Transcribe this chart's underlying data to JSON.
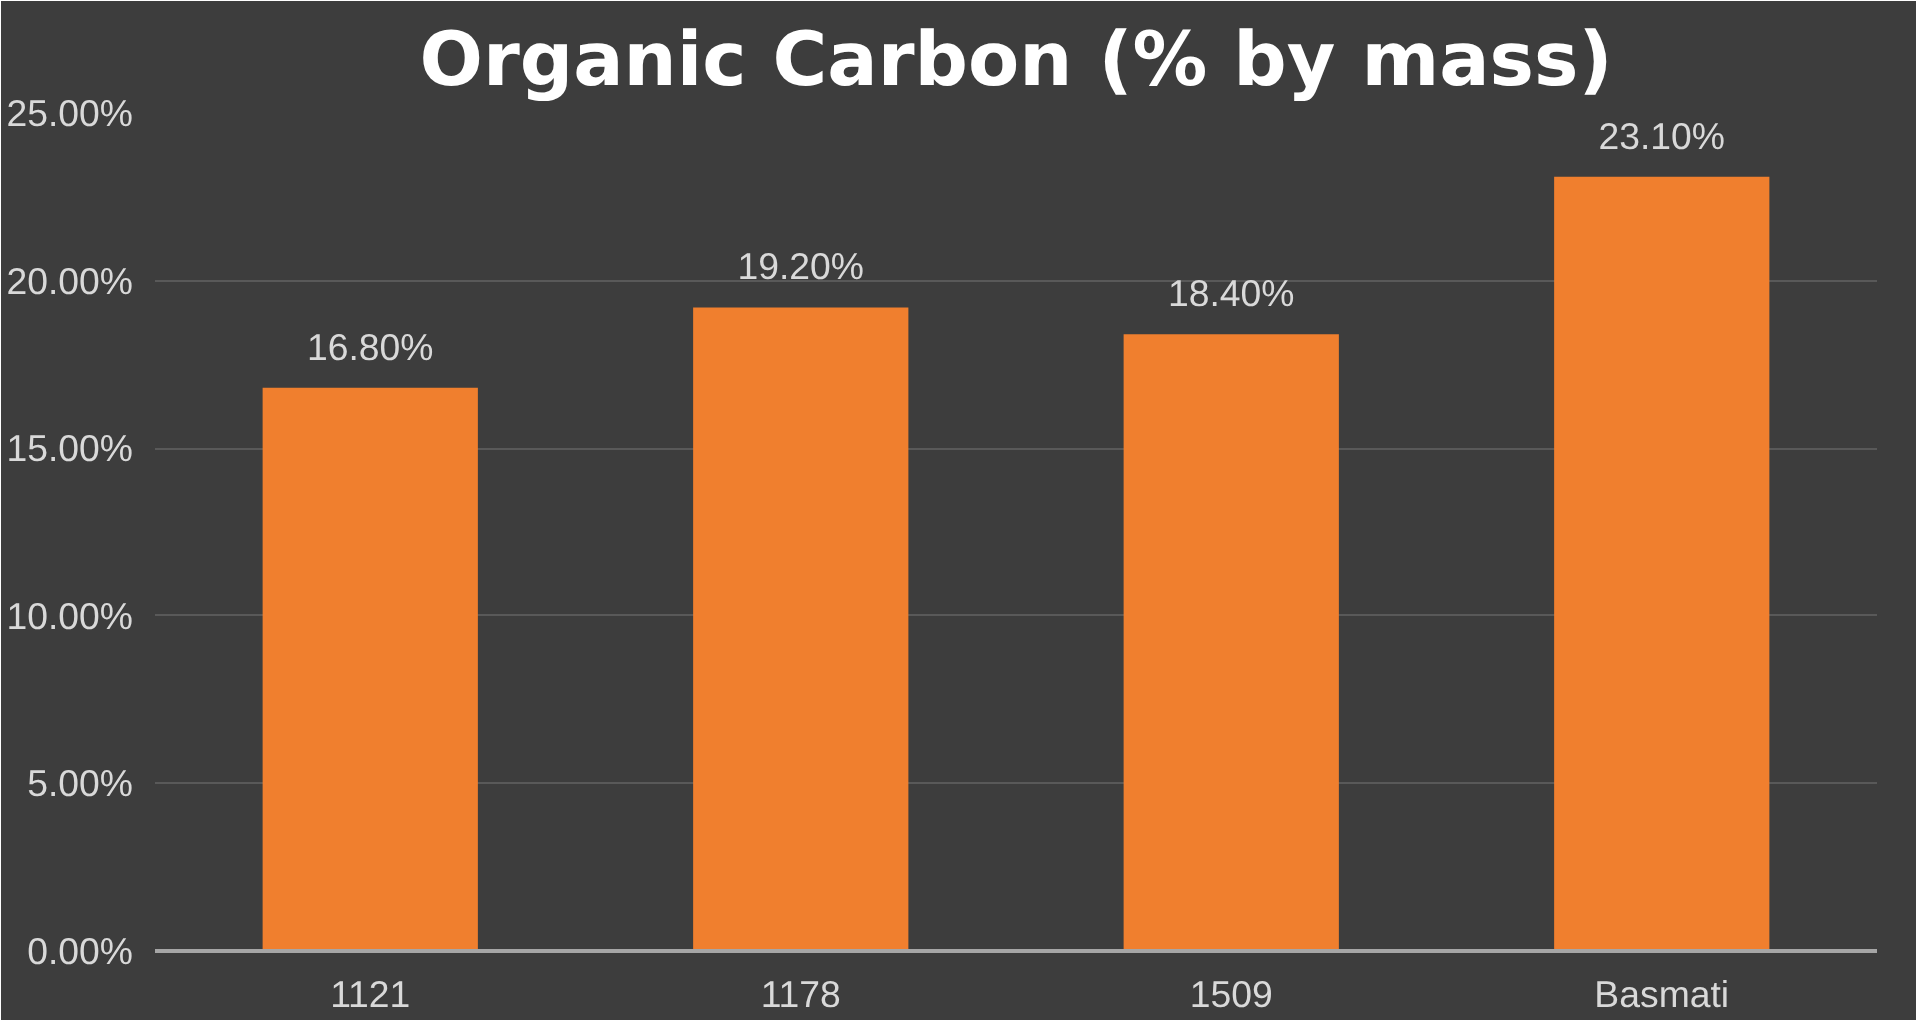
{
  "chart_data": {
    "type": "bar",
    "title": "Organic Carbon (% by mass)",
    "categories": [
      "1121",
      "1178",
      "1509",
      "Basmati"
    ],
    "values": [
      16.8,
      19.2,
      18.4,
      23.1
    ],
    "value_labels": [
      "16.80%",
      "19.20%",
      "18.40%",
      "23.10%"
    ],
    "color": "#f07f2e",
    "ylim": [
      0,
      25
    ],
    "yticks": [
      {
        "value": 0,
        "label": "0.00%"
      },
      {
        "value": 5,
        "label": "5.00%"
      },
      {
        "value": 10,
        "label": "10.00%"
      },
      {
        "value": 15,
        "label": "15.00%"
      },
      {
        "value": 20,
        "label": "20.00%"
      },
      {
        "value": 25,
        "label": "25.00%"
      }
    ],
    "grid": "y"
  }
}
